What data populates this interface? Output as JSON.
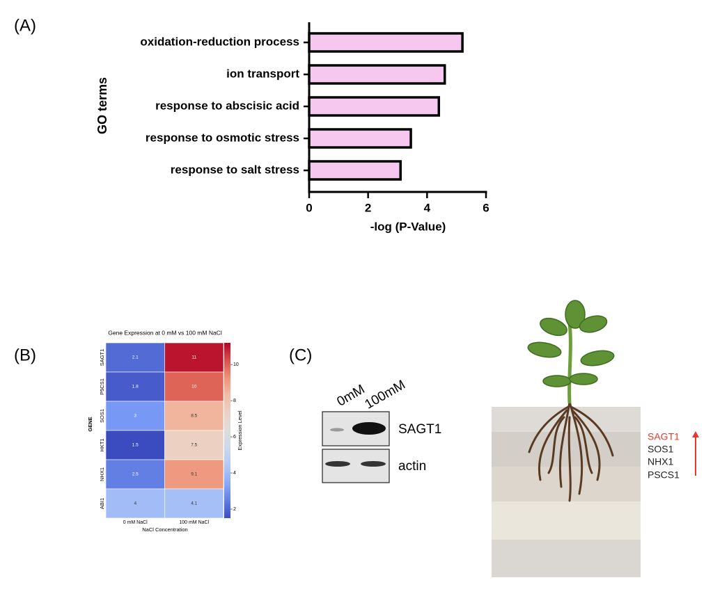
{
  "panel_labels": [
    "(A)",
    "(B)",
    "(C)"
  ],
  "chart_data": [
    {
      "type": "hbar",
      "categories": [
        "oxidation-reduction process",
        "ion transport",
        "response to abscisic acid",
        "response to osmotic stress",
        "response to salt stress"
      ],
      "values": [
        5.2,
        4.6,
        4.4,
        3.45,
        3.1
      ],
      "color": "#f6c8ef",
      "edge_color": "#000000",
      "xlim": [
        0,
        6
      ],
      "xticks": [
        0,
        2,
        4,
        6
      ],
      "xlabel": "-log (P-Value)",
      "ylabel": "GO terms"
    },
    {
      "type": "heatmap",
      "title": "Gene Expression at 0 mM vs 100 mM NaCl",
      "rows": [
        "SAGT1",
        "P5CS1",
        "SOS1",
        "HKT1",
        "NHX1",
        "ABI1"
      ],
      "columns": [
        "0 mM NaCl",
        "100 mM NaCl"
      ],
      "values": [
        [
          2.1,
          11
        ],
        [
          1.8,
          10
        ],
        [
          3,
          8.5
        ],
        [
          1.5,
          7.5
        ],
        [
          2.5,
          9.1
        ],
        [
          4,
          4.1
        ]
      ],
      "xlabel": "NaCl Concentration",
      "ylabel": "GENE",
      "colormap": "coolwarm",
      "clim": [
        1.5,
        11.2
      ],
      "cticks": [
        2,
        4,
        6,
        8,
        10
      ],
      "colorbar_label": "Expression Level"
    }
  ],
  "blot": {
    "lanes": [
      "0mM",
      "100mM"
    ],
    "rows": [
      "SAGT1",
      "actin"
    ]
  },
  "illustration": {
    "genes": [
      "SAGT1",
      "SOS1",
      "NHX1",
      "PSCS1"
    ]
  }
}
